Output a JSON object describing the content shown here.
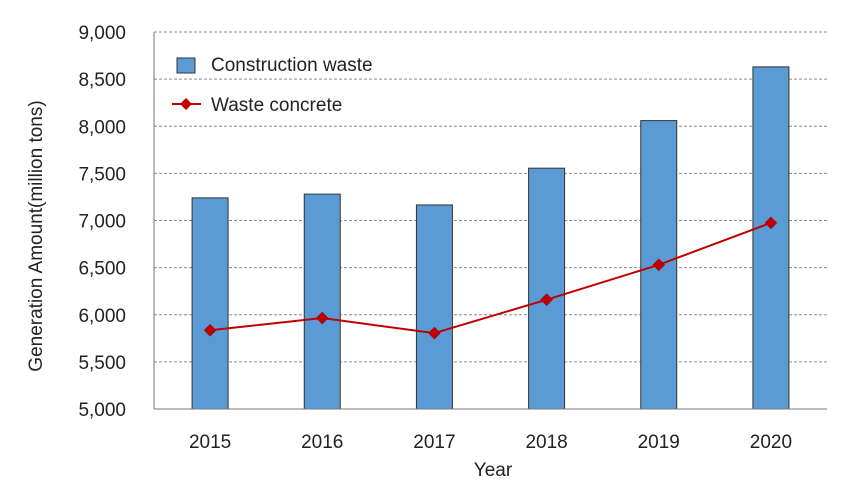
{
  "chart_data": {
    "type": "bar",
    "title": "",
    "xlabel": "Year",
    "ylabel": "Generation Amount(million tons)",
    "categories": [
      "2015",
      "2016",
      "2017",
      "2018",
      "2019",
      "2020"
    ],
    "ylim": [
      5000,
      9000
    ],
    "yticks": [
      5000,
      5500,
      6000,
      6500,
      7000,
      7500,
      8000,
      8500,
      9000
    ],
    "ytick_labels": [
      "5,000",
      "5,500",
      "6,000",
      "6,500",
      "7,000",
      "7,500",
      "8,000",
      "8,500",
      "9,000"
    ],
    "grid": true,
    "legend_position": "top-left",
    "series": [
      {
        "name": "Construction waste",
        "kind": "bar",
        "color": "#5b9bd5",
        "values": [
          7240,
          7280,
          7165,
          7555,
          8060,
          8630
        ]
      },
      {
        "name": "Waste concrete",
        "kind": "line",
        "marker": "diamond",
        "color": "#c00000",
        "values": [
          5835,
          5965,
          5805,
          6160,
          6530,
          6975
        ]
      }
    ]
  }
}
